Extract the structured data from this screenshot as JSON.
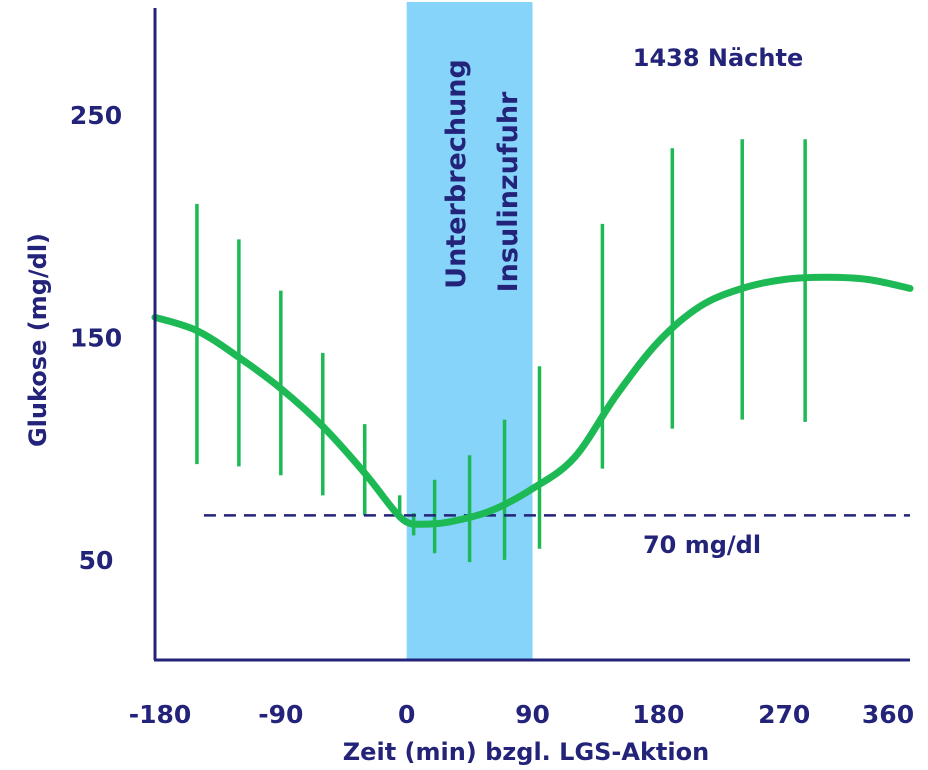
{
  "chart_data": {
    "type": "line",
    "xlabel": "Zeit (min) bzgl. LGS-Aktion",
    "ylabel": "Glukose (mg/dl)",
    "x_ticks": [
      {
        "value": -180,
        "label": "-180"
      },
      {
        "value": -90,
        "label": "-90"
      },
      {
        "value": 0,
        "label": "0"
      },
      {
        "value": 90,
        "label": "90"
      },
      {
        "value": 180,
        "label": "180"
      },
      {
        "value": 270,
        "label": "270"
      },
      {
        "value": 360,
        "label": "360"
      }
    ],
    "y_ticks": [
      {
        "value": 50,
        "label": "50"
      },
      {
        "value": 150,
        "label": "150"
      },
      {
        "value": 250,
        "label": "250"
      }
    ],
    "xlim": [
      -180,
      360
    ],
    "ylim": [
      5,
      298
    ],
    "grid": false,
    "annotations": {
      "nights": "1438 Nächte",
      "threshold_label": "70 mg/dl",
      "band_label_line1": "Unterbrechung",
      "band_label_line2": "Insulinzufuhr"
    },
    "threshold": 70,
    "band": [
      0,
      90
    ],
    "colors": {
      "line": "#1db954",
      "band": "#87d4fb",
      "axis": "#23237a",
      "threshold": "#23237a"
    },
    "curve": {
      "x": [
        -180,
        -150,
        -120,
        -90,
        -60,
        -30,
        -10,
        0,
        10,
        30,
        60,
        90,
        120,
        150,
        180,
        210,
        240,
        270,
        300,
        330,
        360
      ],
      "y": [
        159,
        153,
        141,
        127,
        110,
        89,
        73,
        67,
        66,
        67,
        72,
        82,
        96,
        124,
        148,
        164,
        172,
        176,
        177,
        176,
        172
      ]
    },
    "error_bars": [
      {
        "x": -150,
        "low": 93,
        "high": 210
      },
      {
        "x": -120,
        "low": 92,
        "high": 194
      },
      {
        "x": -90,
        "low": 88,
        "high": 171
      },
      {
        "x": -60,
        "low": 79,
        "high": 143
      },
      {
        "x": -30,
        "low": 70,
        "high": 111
      },
      {
        "x": -5,
        "low": 68,
        "high": 79
      },
      {
        "x": 5,
        "low": 61,
        "high": 71
      },
      {
        "x": 20,
        "low": 53,
        "high": 86
      },
      {
        "x": 45,
        "low": 49,
        "high": 97
      },
      {
        "x": 70,
        "low": 50,
        "high": 113
      },
      {
        "x": 95,
        "low": 55,
        "high": 137
      },
      {
        "x": 140,
        "low": 91,
        "high": 201
      },
      {
        "x": 190,
        "low": 109,
        "high": 235
      },
      {
        "x": 240,
        "low": 113,
        "high": 239
      },
      {
        "x": 285,
        "low": 112,
        "high": 239
      }
    ]
  }
}
